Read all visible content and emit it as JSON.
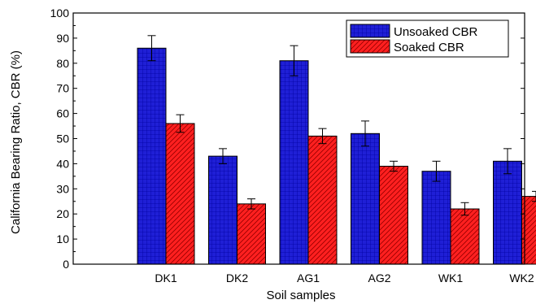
{
  "chart_data": {
    "type": "bar",
    "title": "",
    "xlabel": "Soil samples",
    "ylabel": "California Bearing Ratio, CBR (%)",
    "ylim": [
      0,
      100
    ],
    "yticks": [
      0,
      10,
      20,
      30,
      40,
      50,
      60,
      70,
      80,
      90,
      100
    ],
    "categories": [
      "DK1",
      "DK2",
      "AG1",
      "AG2",
      "WK1",
      "WK2"
    ],
    "series": [
      {
        "name": "Unsoaked CBR",
        "color": "#1f1fd6",
        "pattern": "grid",
        "values": [
          86,
          43,
          81,
          52,
          37,
          41
        ],
        "errors": [
          5,
          3,
          6,
          5,
          4,
          5
        ]
      },
      {
        "name": "Soaked CBR",
        "color": "#ff2020",
        "pattern": "diagonal",
        "values": [
          56,
          24,
          51,
          39,
          22,
          27
        ],
        "errors": [
          3.5,
          2,
          3,
          2,
          2.5,
          2
        ]
      }
    ],
    "legend_position": "top-right",
    "grid": false
  }
}
